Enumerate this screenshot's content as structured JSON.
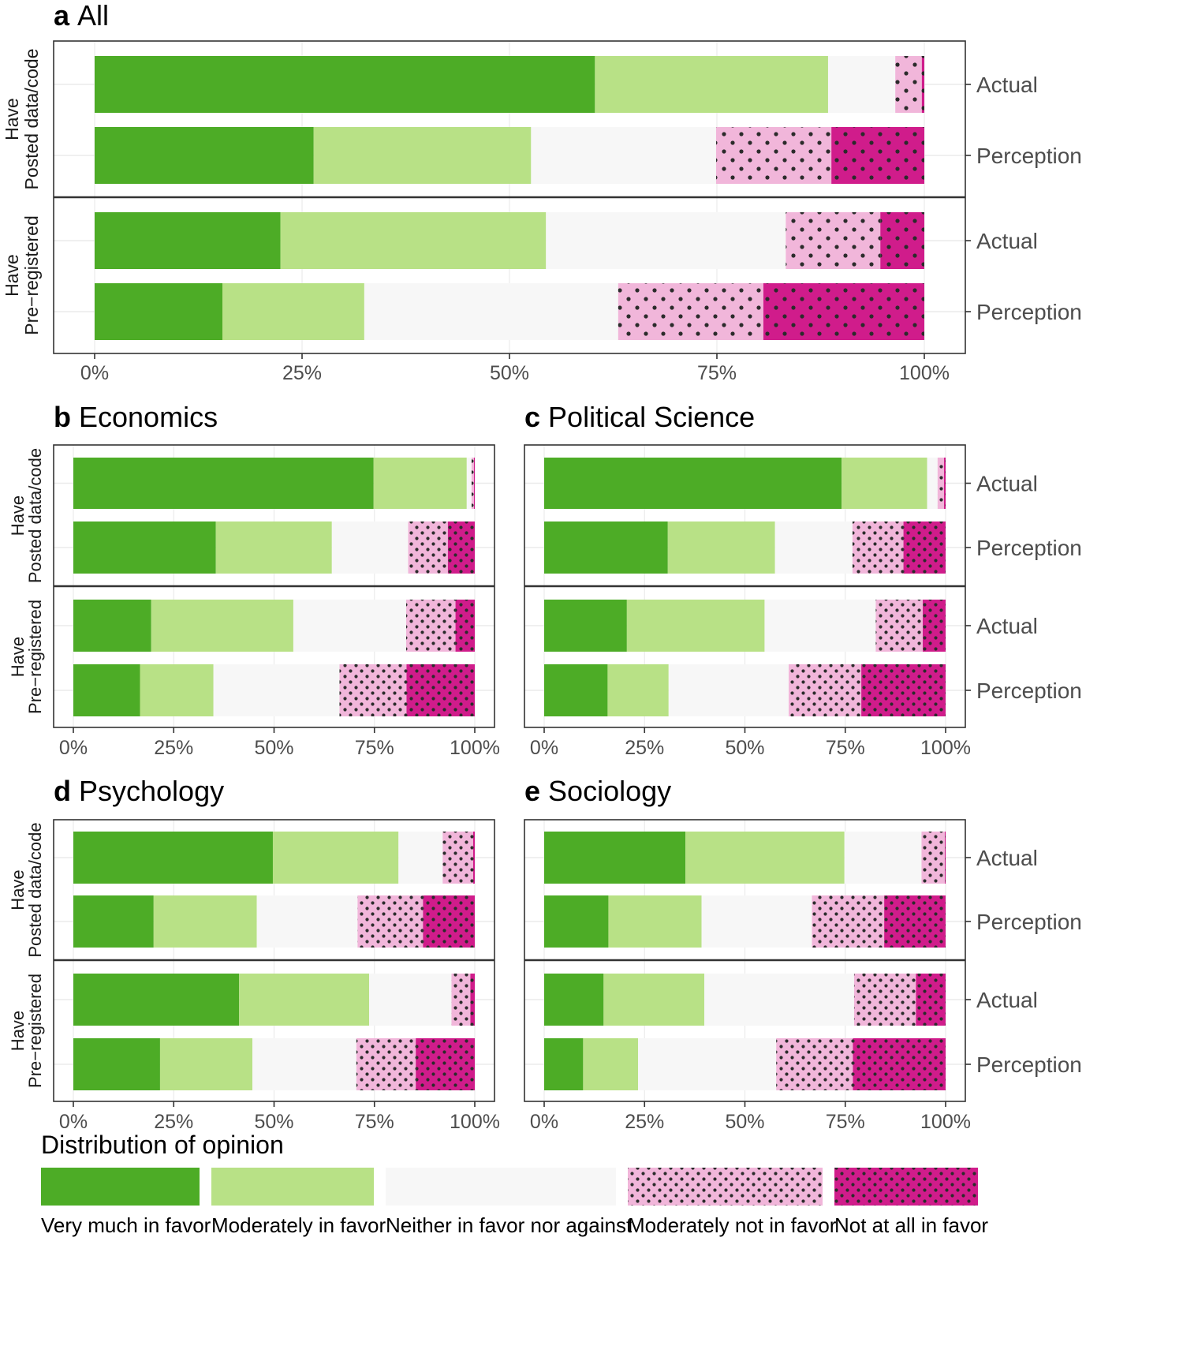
{
  "colors": {
    "very_much": "#4dac26",
    "moderately": "#b8e186",
    "neither": "#f7f7f7",
    "moderately_not": "#f1b6da",
    "not_at_all": "#d01c8b",
    "dots": "#2b2b2b"
  },
  "legend": {
    "title": "Distribution of opinion",
    "items": [
      {
        "key": "very_much",
        "label": "Very much in favor"
      },
      {
        "key": "moderately",
        "label": "Moderately in favor"
      },
      {
        "key": "neither",
        "label": "Neither in favor nor against"
      },
      {
        "key": "moderately_not",
        "label": "Moderately not in favor"
      },
      {
        "key": "not_at_all",
        "label": "Not at all in favor"
      }
    ]
  },
  "chart_data": [
    {
      "type": "bar",
      "orientation": "horizontal-stacked",
      "letter": "a",
      "title": "All",
      "x_ticks": [
        "0%",
        "25%",
        "50%",
        "75%",
        "100%"
      ],
      "xlim": [
        0,
        100
      ],
      "facets": [
        {
          "strip": [
            "Have",
            "Posted data/code"
          ],
          "rows": [
            {
              "label": "Actual",
              "values": [
                60.3,
                28.1,
                8.1,
                3.2,
                0.3
              ]
            },
            {
              "label": "Perception",
              "values": [
                26.4,
                26.2,
                22.3,
                13.9,
                11.2
              ]
            }
          ]
        },
        {
          "strip": [
            "Have",
            "Pre−registered"
          ],
          "rows": [
            {
              "label": "Actual",
              "values": [
                22.4,
                32.0,
                28.9,
                11.4,
                5.3
              ]
            },
            {
              "label": "Perception",
              "values": [
                15.4,
                17.1,
                30.6,
                17.5,
                19.4
              ]
            }
          ]
        }
      ]
    },
    {
      "type": "bar",
      "orientation": "horizontal-stacked",
      "letter": "b",
      "title": "Economics",
      "x_ticks": [
        "0%",
        "25%",
        "50%",
        "75%",
        "100%"
      ],
      "xlim": [
        0,
        100
      ],
      "facets": [
        {
          "strip": [
            "Have",
            "Posted data/code"
          ],
          "rows": [
            {
              "label": "Actual",
              "values": [
                74.8,
                23.2,
                1.2,
                0.6,
                0.2
              ]
            },
            {
              "label": "Perception",
              "values": [
                35.5,
                28.9,
                19.0,
                9.9,
                6.7
              ]
            }
          ]
        },
        {
          "strip": [
            "Have",
            "Pre−registered"
          ],
          "rows": [
            {
              "label": "Actual",
              "values": [
                19.4,
                35.4,
                28.1,
                12.3,
                4.8
              ]
            },
            {
              "label": "Perception",
              "values": [
                16.6,
                18.3,
                31.4,
                16.7,
                17.0
              ]
            }
          ]
        }
      ]
    },
    {
      "type": "bar",
      "orientation": "horizontal-stacked",
      "letter": "c",
      "title": "Political Science",
      "x_ticks": [
        "0%",
        "25%",
        "50%",
        "75%",
        "100%"
      ],
      "xlim": [
        0,
        100
      ],
      "facets": [
        {
          "strip": [
            "Have",
            "Posted data/code"
          ],
          "rows": [
            {
              "label": "Actual",
              "values": [
                74.1,
                21.3,
                2.6,
                1.6,
                0.4
              ]
            },
            {
              "label": "Perception",
              "values": [
                30.8,
                26.7,
                19.3,
                12.7,
                10.5
              ]
            }
          ]
        },
        {
          "strip": [
            "Have",
            "Pre−registered"
          ],
          "rows": [
            {
              "label": "Actual",
              "values": [
                20.6,
                34.3,
                27.7,
                11.7,
                5.7
              ]
            },
            {
              "label": "Perception",
              "values": [
                15.8,
                15.2,
                29.9,
                18.1,
                21.0
              ]
            }
          ]
        }
      ]
    },
    {
      "type": "bar",
      "orientation": "horizontal-stacked",
      "letter": "d",
      "title": "Psychology",
      "x_ticks": [
        "0%",
        "25%",
        "50%",
        "75%",
        "100%"
      ],
      "xlim": [
        0,
        100
      ],
      "facets": [
        {
          "strip": [
            "Have",
            "Posted data/code"
          ],
          "rows": [
            {
              "label": "Actual",
              "values": [
                49.7,
                31.3,
                11.0,
                7.6,
                0.4
              ]
            },
            {
              "label": "Perception",
              "values": [
                20.0,
                25.7,
                25.1,
                16.3,
                12.9
              ]
            }
          ]
        },
        {
          "strip": [
            "Have",
            "Pre−registered"
          ],
          "rows": [
            {
              "label": "Actual",
              "values": [
                41.3,
                32.4,
                20.5,
                4.7,
                1.1
              ]
            },
            {
              "label": "Perception",
              "values": [
                21.6,
                23.0,
                25.9,
                14.8,
                14.7
              ]
            }
          ]
        }
      ]
    },
    {
      "type": "bar",
      "orientation": "horizontal-stacked",
      "letter": "e",
      "title": "Sociology",
      "x_ticks": [
        "0%",
        "25%",
        "50%",
        "75%",
        "100%"
      ],
      "xlim": [
        0,
        100
      ],
      "facets": [
        {
          "strip": [
            "Have",
            "Posted data/code"
          ],
          "rows": [
            {
              "label": "Actual",
              "values": [
                35.2,
                39.6,
                19.2,
                5.8,
                0.2
              ]
            },
            {
              "label": "Perception",
              "values": [
                16.0,
                23.2,
                27.5,
                18.0,
                15.3
              ]
            }
          ]
        },
        {
          "strip": [
            "Have",
            "Pre−registered"
          ],
          "rows": [
            {
              "label": "Actual",
              "values": [
                14.8,
                25.1,
                37.3,
                15.4,
                7.4
              ]
            },
            {
              "label": "Perception",
              "values": [
                9.7,
                13.7,
                34.4,
                19.1,
                23.1
              ]
            }
          ]
        }
      ]
    }
  ]
}
